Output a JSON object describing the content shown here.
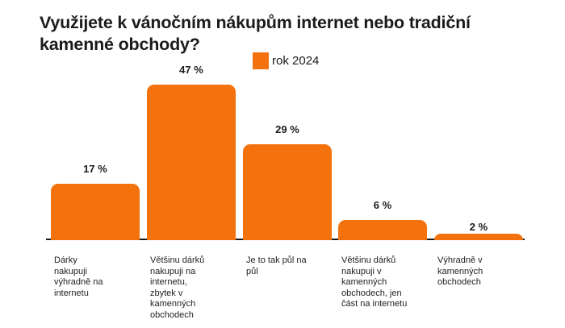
{
  "page": {
    "background": "#ffffff"
  },
  "chart": {
    "title": "Využijete k vánočním nákupům internet nebo tradiční\nkamenné obchody?",
    "legend_label": "rok 2024"
  },
  "chart_data": {
    "type": "bar",
    "title": "Využijete k vánočním nákupům internet nebo tradiční kamenné obchody?",
    "legend": [
      "rok 2024"
    ],
    "legend_position": "top-center",
    "categories": [
      "Dárky nakupuji výhradně na internetu",
      "Většinu dárků nakupuji na internetu, zbytek v kamenných obchodech",
      "Je to tak půl na půl",
      "Většinu dárků nakupuji v kamenných obchodech, jen část na internetu",
      "Výhradně v kamenných obchodech"
    ],
    "tick_labels": [
      "Dárky\nnakupuji\nvýhradně na\ninternetu",
      "Většinu dárků\nnakupuji na\ninternetu,\nzbytek v\nkamenných\nobchodech",
      "Je to tak půl na\npůl",
      "Většinu dárků\nnakupuji v\nkamenných\nobchodech, jen\nčást na internetu",
      "Výhradně v\nkamenných\nobchodech"
    ],
    "series": [
      {
        "name": "rok 2024",
        "values": [
          17,
          47,
          29,
          6,
          2
        ]
      }
    ],
    "values": [
      17,
      47,
      29,
      6,
      2
    ],
    "value_labels": [
      "17 %",
      "47 %",
      "29 %",
      "6 %",
      "2 %"
    ],
    "unit": "%",
    "xlabel": "",
    "ylabel": "",
    "ylim": [
      0,
      50
    ],
    "grid": false,
    "colors": {
      "bar": "#f4720e",
      "text": "#1c1b1a",
      "axis": "#1c1b1a"
    }
  }
}
